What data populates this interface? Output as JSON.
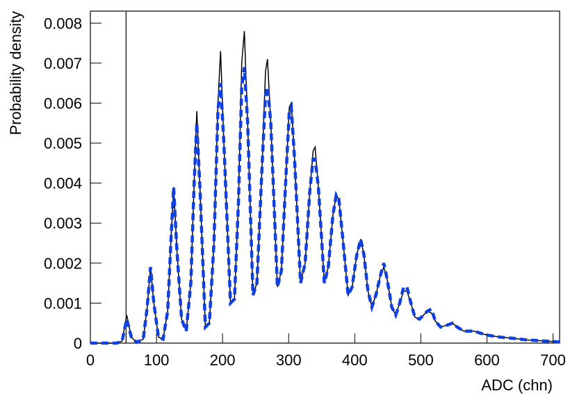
{
  "chart_data": {
    "type": "line",
    "xlabel": "ADC (chn)",
    "ylabel": "Probability density",
    "xlim": [
      0,
      710
    ],
    "ylim": [
      0,
      0.0083
    ],
    "xticks": [
      0,
      100,
      200,
      300,
      400,
      500,
      600,
      700
    ],
    "yticks": [
      0,
      0.001,
      0.002,
      0.003,
      0.004,
      0.005,
      0.006,
      0.007,
      0.008
    ],
    "vline": 54,
    "x": [
      0,
      40,
      48,
      55,
      62,
      70,
      80,
      86,
      91,
      96,
      103,
      110,
      117,
      122,
      126,
      131,
      138,
      145,
      152,
      157,
      161,
      166,
      174,
      180,
      187,
      193,
      197,
      202,
      212,
      218,
      224,
      229,
      233,
      238,
      246,
      252,
      260,
      265,
      268,
      273,
      283,
      289,
      296,
      301,
      304,
      309,
      318,
      325,
      332,
      337,
      340,
      345,
      354,
      360,
      367,
      372,
      376,
      382,
      390,
      396,
      403,
      409,
      414,
      420,
      426,
      432,
      439,
      444,
      449,
      456,
      462,
      468,
      474,
      479,
      485,
      491,
      498,
      504,
      510,
      516,
      522,
      530,
      540,
      548,
      555,
      565,
      580,
      600,
      620,
      640,
      660,
      680,
      700,
      710
    ],
    "series": [
      {
        "color": "#000000",
        "style": "solid",
        "values": [
          0,
          0,
          5e-05,
          0.0007,
          0.00015,
          2e-05,
          0.0001,
          0.0009,
          0.0019,
          0.001,
          0.00015,
          0.0001,
          0.0008,
          0.0026,
          0.0039,
          0.0023,
          0.0006,
          0.0003,
          0.0015,
          0.004,
          0.0058,
          0.0038,
          0.0004,
          0.0005,
          0.0025,
          0.006,
          0.0073,
          0.005,
          0.001,
          0.0011,
          0.0035,
          0.007,
          0.0078,
          0.0055,
          0.0012,
          0.0015,
          0.0045,
          0.0068,
          0.0071,
          0.0055,
          0.0014,
          0.0018,
          0.0042,
          0.0059,
          0.006,
          0.0046,
          0.0015,
          0.002,
          0.0038,
          0.0048,
          0.0049,
          0.0039,
          0.0015,
          0.0019,
          0.0032,
          0.0037,
          0.0036,
          0.0026,
          0.0012,
          0.0014,
          0.0022,
          0.0026,
          0.0022,
          0.0013,
          0.0009,
          0.0012,
          0.0017,
          0.0019,
          0.0016,
          0.0009,
          0.0007,
          0.001,
          0.0013,
          0.0013,
          0.001,
          0.00065,
          0.0006,
          0.0007,
          0.0008,
          0.00075,
          0.00055,
          0.0004,
          0.00045,
          0.0005,
          0.0004,
          0.0003,
          0.0003,
          0.0002,
          0.00015,
          0.00012,
          8e-05,
          6e-05,
          4e-05,
          3e-05
        ]
      },
      {
        "color": "#1040e0",
        "style": "dashed",
        "values": [
          0,
          0,
          5e-05,
          0.0006,
          0.00015,
          2e-05,
          0.0001,
          0.0009,
          0.0019,
          0.001,
          0.00015,
          0.0001,
          0.0008,
          0.0026,
          0.0039,
          0.0023,
          0.0006,
          0.0003,
          0.0015,
          0.004,
          0.0055,
          0.0038,
          0.0004,
          0.0005,
          0.0025,
          0.0058,
          0.0065,
          0.005,
          0.001,
          0.0011,
          0.0035,
          0.0064,
          0.0069,
          0.0055,
          0.0012,
          0.0015,
          0.0045,
          0.0062,
          0.0064,
          0.0055,
          0.0014,
          0.0018,
          0.0042,
          0.0058,
          0.0059,
          0.0046,
          0.0015,
          0.002,
          0.0038,
          0.0046,
          0.0046,
          0.0039,
          0.0015,
          0.0019,
          0.0032,
          0.0037,
          0.0036,
          0.0026,
          0.0012,
          0.0014,
          0.0022,
          0.0026,
          0.0022,
          0.0013,
          0.0009,
          0.0012,
          0.0017,
          0.002,
          0.0016,
          0.0009,
          0.0007,
          0.001,
          0.0014,
          0.0014,
          0.001,
          0.00065,
          0.0006,
          0.0007,
          0.0008,
          0.00085,
          0.00055,
          0.0004,
          0.00045,
          0.0005,
          0.0004,
          0.0003,
          0.0003,
          0.0002,
          0.00015,
          0.00012,
          8e-05,
          6e-05,
          4e-05,
          3e-05
        ]
      }
    ]
  }
}
